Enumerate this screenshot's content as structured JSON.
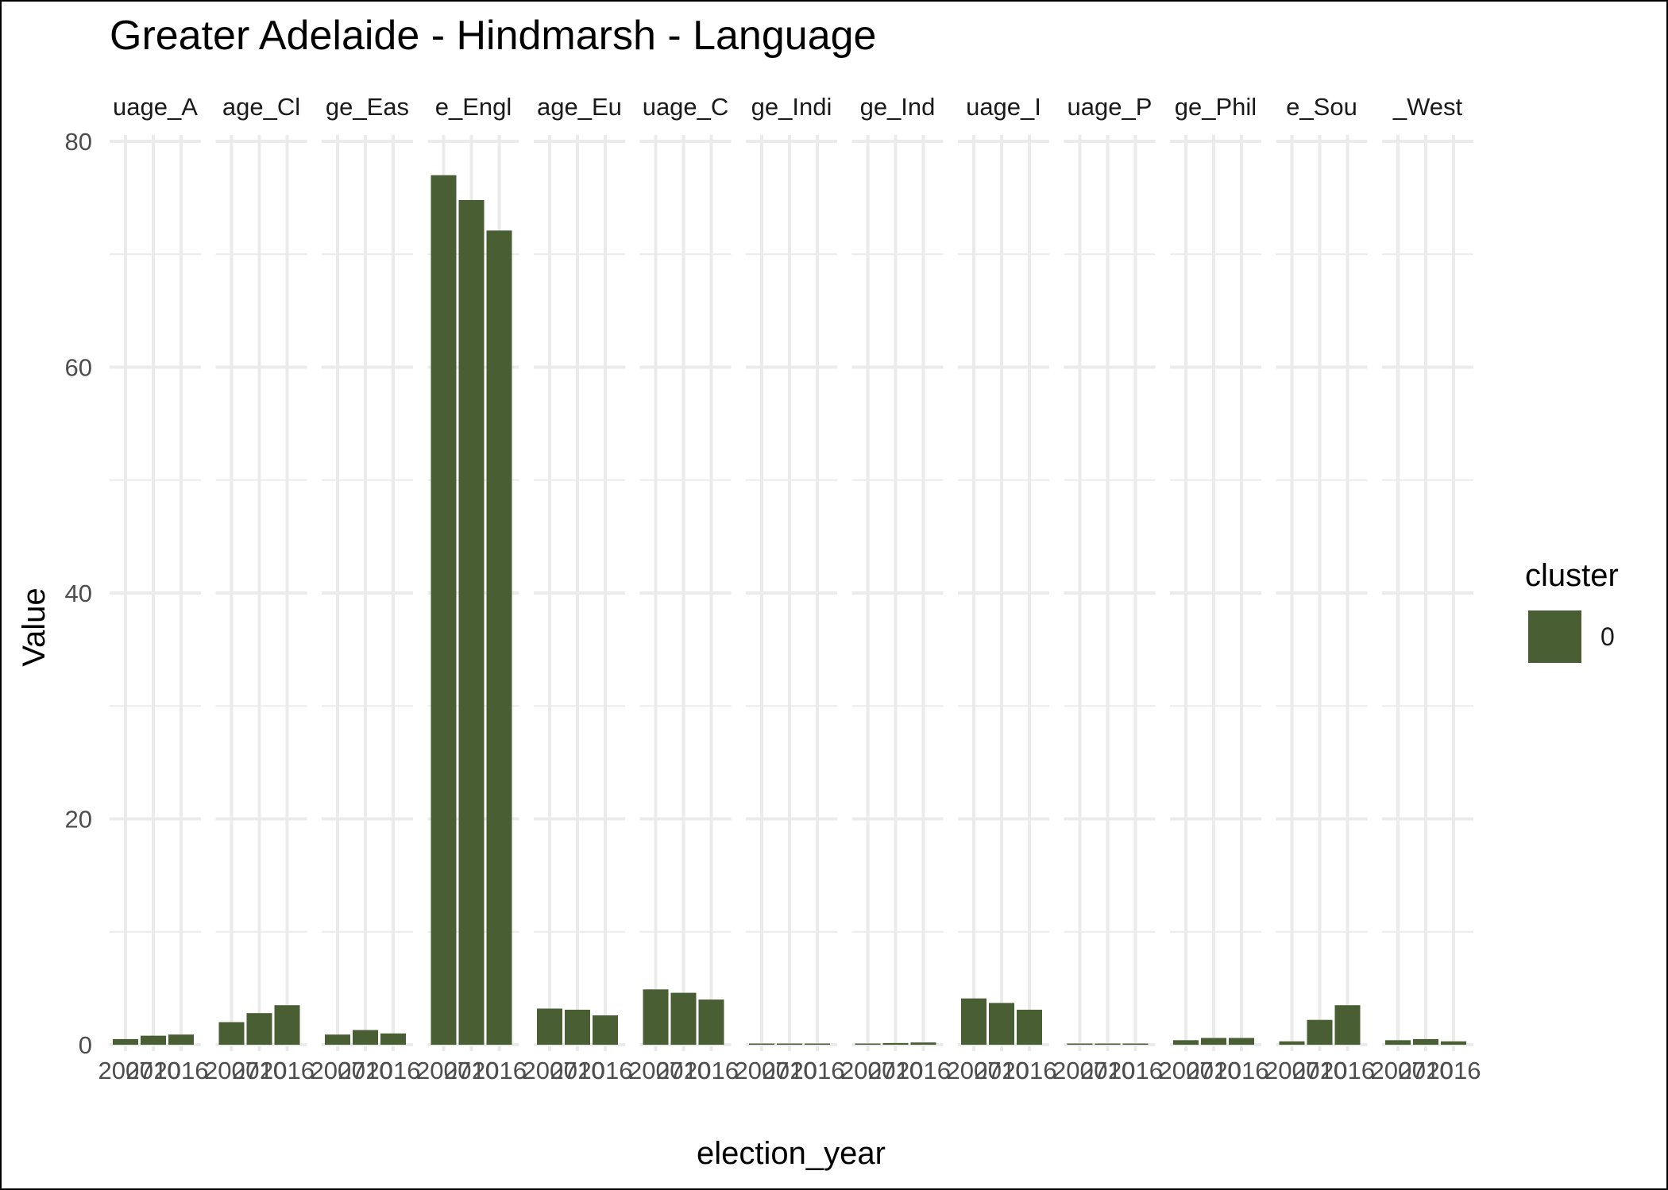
{
  "chart_data": {
    "type": "bar",
    "title": "Greater Adelaide - Hindmarsh - Language",
    "xlabel": "election_year",
    "ylabel": "Value",
    "ylim": [
      0,
      80
    ],
    "yticks": [
      0,
      20,
      40,
      60,
      80
    ],
    "grid": true,
    "legend_position": "right",
    "categories": [
      "2007",
      "2010",
      "2016"
    ],
    "x_tick_labels": [
      "2007",
      "2010",
      "2016"
    ],
    "facets": [
      {
        "label": "uage_A",
        "values": [
          0.5,
          0.8,
          0.9
        ]
      },
      {
        "label": "age_Cl",
        "values": [
          2.0,
          2.8,
          3.5
        ]
      },
      {
        "label": "ge_Eas",
        "values": [
          0.9,
          1.3,
          1.0
        ]
      },
      {
        "label": "e_Engl",
        "values": [
          77.0,
          74.8,
          72.1
        ]
      },
      {
        "label": "age_Eu",
        "values": [
          3.2,
          3.1,
          2.6
        ]
      },
      {
        "label": "uage_C",
        "values": [
          4.9,
          4.6,
          4.0
        ]
      },
      {
        "label": "ge_Indi",
        "values": [
          0.05,
          0.05,
          0.05
        ]
      },
      {
        "label": "ge_Ind",
        "values": [
          0.1,
          0.15,
          0.2
        ]
      },
      {
        "label": "uage_I",
        "values": [
          4.1,
          3.7,
          3.1
        ]
      },
      {
        "label": "uage_P",
        "values": [
          0.02,
          0.02,
          0.02
        ]
      },
      {
        "label": "ge_Phil",
        "values": [
          0.4,
          0.6,
          0.6
        ]
      },
      {
        "label": "e_Sou",
        "values": [
          0.3,
          2.2,
          3.5
        ]
      },
      {
        "label": "_West",
        "values": [
          0.4,
          0.5,
          0.3
        ]
      }
    ],
    "series": [
      {
        "name": "0",
        "color": "#4a5e33"
      }
    ],
    "legend": {
      "title": "cluster",
      "entries": [
        "0"
      ]
    }
  },
  "colors": {
    "bar": "#4a5e33",
    "grid": "#ebebeb",
    "background": "#ffffff"
  }
}
